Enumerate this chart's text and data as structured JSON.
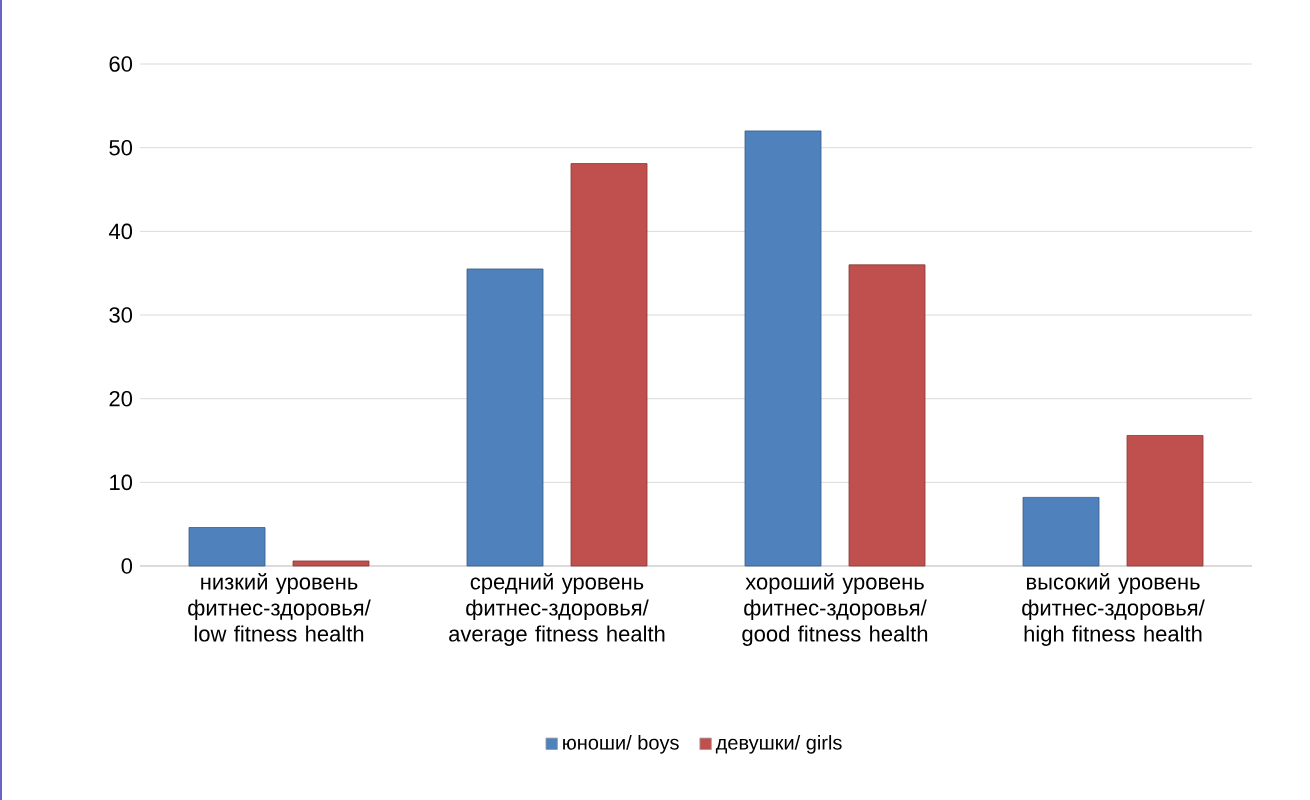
{
  "chart_data": {
    "type": "bar",
    "categories": [
      "низкий уровень фитнес-здоровья/ low fitness health",
      "средний уровень фитнес-здоровья/ average fitness health",
      "хороший уровень фитнес-здоровья/ good fitness health",
      "высокий уровень фитнес-здоровья/ high fitness health"
    ],
    "series": [
      {
        "name": "юноши/ boys",
        "color": "#4f81bd",
        "values": [
          4.6,
          35.5,
          52,
          8.2
        ]
      },
      {
        "name": "девушки/ girls",
        "color": "#c0504d",
        "values": [
          0.6,
          48.1,
          36,
          15.6
        ]
      }
    ],
    "ylim": [
      0,
      60
    ],
    "yticks": [
      0,
      10,
      20,
      30,
      40,
      50,
      60
    ],
    "grid": "y",
    "legend": "bottom"
  }
}
